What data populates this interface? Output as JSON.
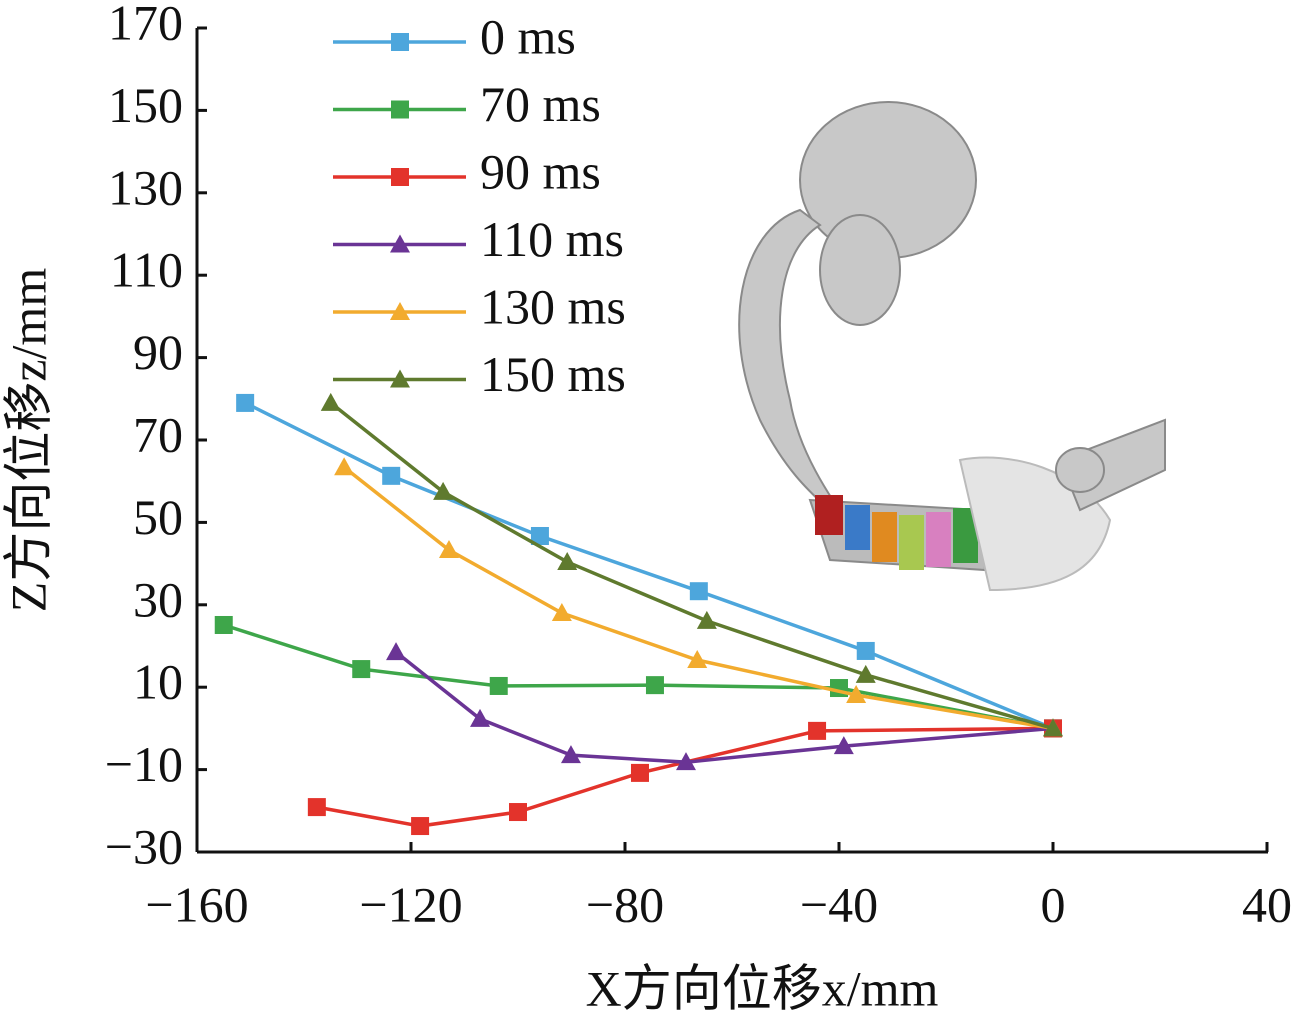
{
  "chart_data": {
    "type": "line",
    "x_label": "X方向位移x/mm",
    "y_label": "Z方向位移z/mm",
    "xlim": [
      -160,
      40
    ],
    "xticks": [
      {
        "value": -160,
        "label": "−160"
      },
      {
        "value": -120,
        "label": "−120"
      },
      {
        "value": -80,
        "label": "−80"
      },
      {
        "value": -40,
        "label": "−40"
      },
      0,
      40
    ],
    "ylim": [
      -30,
      170
    ],
    "yticks": [
      {
        "value": -30,
        "label": "−30"
      },
      {
        "value": -10,
        "label": "−10"
      },
      10,
      30,
      50,
      70,
      90,
      110,
      130,
      150,
      170
    ],
    "legend": "upper-left",
    "series": [
      {
        "name": "0 ms",
        "color": "#4da6dc",
        "marker": "square",
        "x": [
          -151,
          -123.7,
          -95.9,
          -66.2,
          -35,
          0
        ],
        "values": [
          79,
          61.3,
          46.7,
          33.3,
          18.8,
          0
        ]
      },
      {
        "name": "70 ms",
        "color": "#3ea64a",
        "marker": "square",
        "x": [
          -155,
          -129.3,
          -103.6,
          -74.4,
          -40,
          0
        ],
        "values": [
          25.1,
          14.4,
          10.3,
          10.5,
          9.8,
          0
        ]
      },
      {
        "name": "90 ms",
        "color": "#e3332b",
        "marker": "square",
        "x": [
          -137.6,
          -118.3,
          -100,
          -77.2,
          -44.1,
          0
        ],
        "values": [
          -19.1,
          -23.7,
          -20.3,
          -10.8,
          -0.6,
          0
        ]
      },
      {
        "name": "110 ms",
        "color": "#6a3495",
        "marker": "triangle",
        "x": [
          -122.8,
          -107.1,
          -90.1,
          -68.6,
          -39.1,
          0
        ],
        "values": [
          18.5,
          2.3,
          -6.5,
          -8.2,
          -4.3,
          0
        ]
      },
      {
        "name": "130 ms",
        "color": "#f2ab2e",
        "marker": "triangle",
        "x": [
          -132.5,
          -112.9,
          -91.8,
          -66.5,
          -36.8,
          0
        ],
        "values": [
          63.4,
          43.3,
          28,
          16.6,
          8.1,
          0
        ]
      },
      {
        "name": "150 ms",
        "color": "#5f7a2e",
        "marker": "triangle",
        "x": [
          -135,
          -114,
          -90.8,
          -64.7,
          -35,
          0
        ],
        "values": [
          79,
          57.4,
          40.4,
          26.1,
          13,
          0
        ]
      }
    ]
  }
}
